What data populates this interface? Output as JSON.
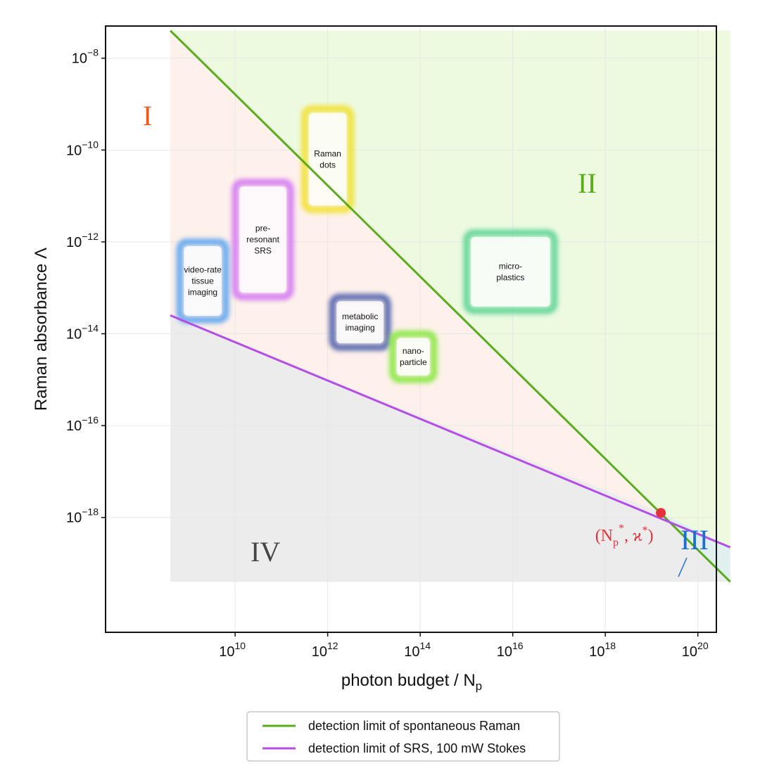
{
  "chart_data": {
    "type": "line",
    "x_scale": "log10",
    "y_scale": "log10",
    "xlim_log10": [
      7.2,
      20.4
    ],
    "ylim_log10": [
      -7.3,
      -20.5
    ],
    "xlabel_main": "photon budget / N",
    "xlabel_sub": "p",
    "ylabel": "Raman absorbance Λ",
    "x_ticks": [
      {
        "exp": 10,
        "base": "10",
        "sup": "10"
      },
      {
        "exp": 12,
        "base": "10",
        "sup": "12"
      },
      {
        "exp": 14,
        "base": "10",
        "sup": "14"
      },
      {
        "exp": 16,
        "base": "10",
        "sup": "16"
      },
      {
        "exp": 18,
        "base": "10",
        "sup": "18"
      },
      {
        "exp": 20,
        "base": "10",
        "sup": "20"
      }
    ],
    "y_ticks": [
      {
        "exp": -8,
        "base": "10",
        "sup": "−8"
      },
      {
        "exp": -10,
        "base": "10",
        "sup": "−10"
      },
      {
        "exp": -12,
        "base": "10",
        "sup": "−12"
      },
      {
        "exp": -14,
        "base": "10",
        "sup": "−14"
      },
      {
        "exp": -16,
        "base": "10",
        "sup": "−16"
      },
      {
        "exp": -18,
        "base": "10",
        "sup": "−18"
      }
    ],
    "grid": true,
    "series": [
      {
        "name": "detection limit of spontaneous Raman",
        "color": "#5aab1e",
        "x_log10": [
          8.6,
          20.7
        ],
        "y_log10": [
          -7.4,
          -19.4
        ]
      },
      {
        "name": "detection limit of SRS, 100 mW Stokes",
        "color": "#b44ee6",
        "x_log10": [
          8.6,
          20.7
        ],
        "y_log10": [
          -13.6,
          -18.65
        ]
      }
    ],
    "regions": [
      {
        "id": "I",
        "label": "I",
        "color": "#ee5a1e"
      },
      {
        "id": "II",
        "label": "II",
        "color": "#5aab1e"
      },
      {
        "id": "III",
        "label": "III",
        "color": "#1a6fd1"
      },
      {
        "id": "IV",
        "label": "IV",
        "color": "#444444"
      }
    ],
    "applications": [
      {
        "lines": [
          "Raman",
          "dots"
        ],
        "color": "#f2e23a",
        "x_log10": [
          11.5,
          12.5
        ],
        "y_log10": [
          -9.1,
          -11.3
        ]
      },
      {
        "lines": [
          "pre-",
          "resonant",
          "SRS"
        ],
        "color": "#d67ff2",
        "x_log10": [
          10.0,
          11.2
        ],
        "y_log10": [
          -10.7,
          -13.2
        ]
      },
      {
        "lines": [
          "video-rate",
          "tissue",
          "imaging"
        ],
        "color": "#66a9f0",
        "x_log10": [
          8.8,
          9.8
        ],
        "y_log10": [
          -12.0,
          -13.7
        ]
      },
      {
        "lines": [
          "micro-",
          "plastics"
        ],
        "color": "#66d69a",
        "x_log10": [
          15.0,
          16.9
        ],
        "y_log10": [
          -11.8,
          -13.5
        ]
      },
      {
        "lines": [
          "metabolic",
          "imaging"
        ],
        "color": "#5a6bb0",
        "x_log10": [
          12.1,
          13.3
        ],
        "y_log10": [
          -13.2,
          -14.3
        ]
      },
      {
        "lines": [
          "nano-",
          "particle"
        ],
        "color": "#8fe84a",
        "x_log10": [
          13.4,
          14.3
        ],
        "y_log10": [
          -14.0,
          -15.0
        ]
      }
    ],
    "intersection": {
      "x_log10": 19.2,
      "y_log10": -17.9,
      "color": "#e8303a",
      "label_main": "(N",
      "label_sub": "p",
      "label_sup": "*",
      "label_rest": ", ϰ",
      "label_sup2": "*",
      "label_close": ")"
    },
    "legend": {
      "placement": "bottom-center",
      "entries": [
        {
          "label": "detection limit of spontaneous Raman",
          "color": "#5aab1e"
        },
        {
          "label": "detection limit of SRS, 100 mW Stokes",
          "color": "#b44ee6"
        }
      ]
    }
  }
}
